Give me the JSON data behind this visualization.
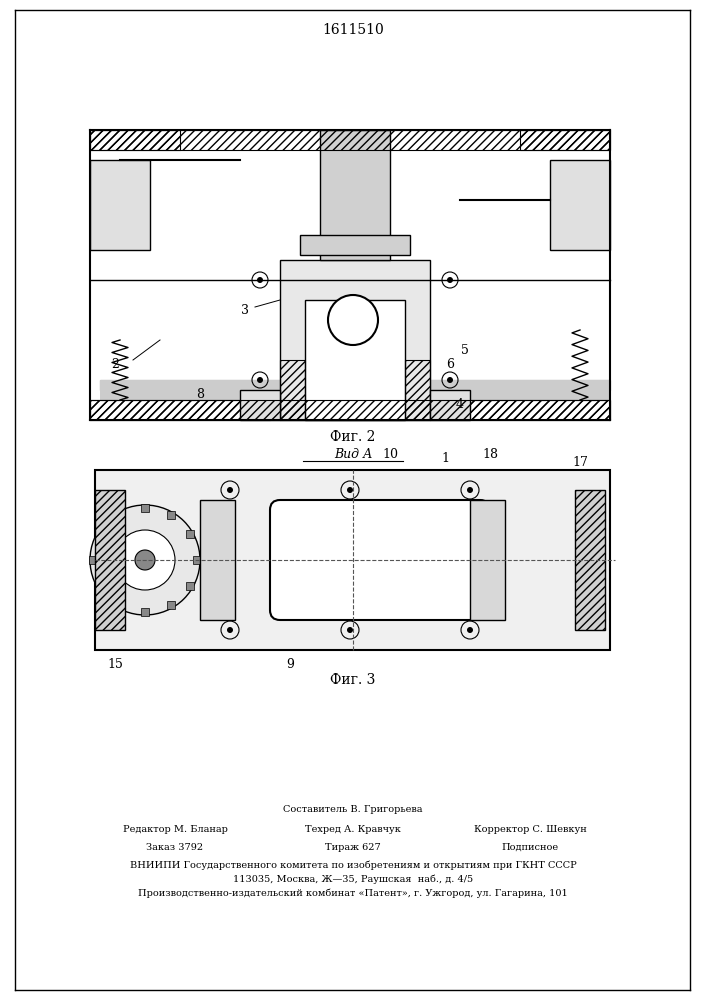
{
  "patent_number": "1611510",
  "fig2_label": "Фиг. 2",
  "fig3_label": "Фиг. 3",
  "vid_label": "Вид А",
  "background_color": "#ffffff",
  "line_color": "#000000",
  "hatch_color": "#000000",
  "fig2_numbers": [
    "2",
    "3",
    "8",
    "4",
    "5",
    "6"
  ],
  "fig3_numbers": [
    "15",
    "9",
    "10",
    "1",
    "18",
    "17"
  ],
  "footer_line1": "Составитель В. Григорьева",
  "footer_line2_left": "Редактор М. Бланар",
  "footer_line2_mid": "Техред А. Кравчук",
  "footer_line2_right": "Корректор С. Шевкун",
  "footer_line3_left": "Заказ 3792",
  "footer_line3_mid": "Тираж 627",
  "footer_line3_right": "Подписное",
  "footer_line4": "ВНИИПИ Государственного комитета по изобретениям и открытиям при ГКНТ СССР",
  "footer_line5": "113035, Москва, Ж—35, Раушская  наб., д. 4/5",
  "footer_line6": "Производственно-издательский комбинат «Патент», г. Ужгород, ул. Гагарина, 101"
}
